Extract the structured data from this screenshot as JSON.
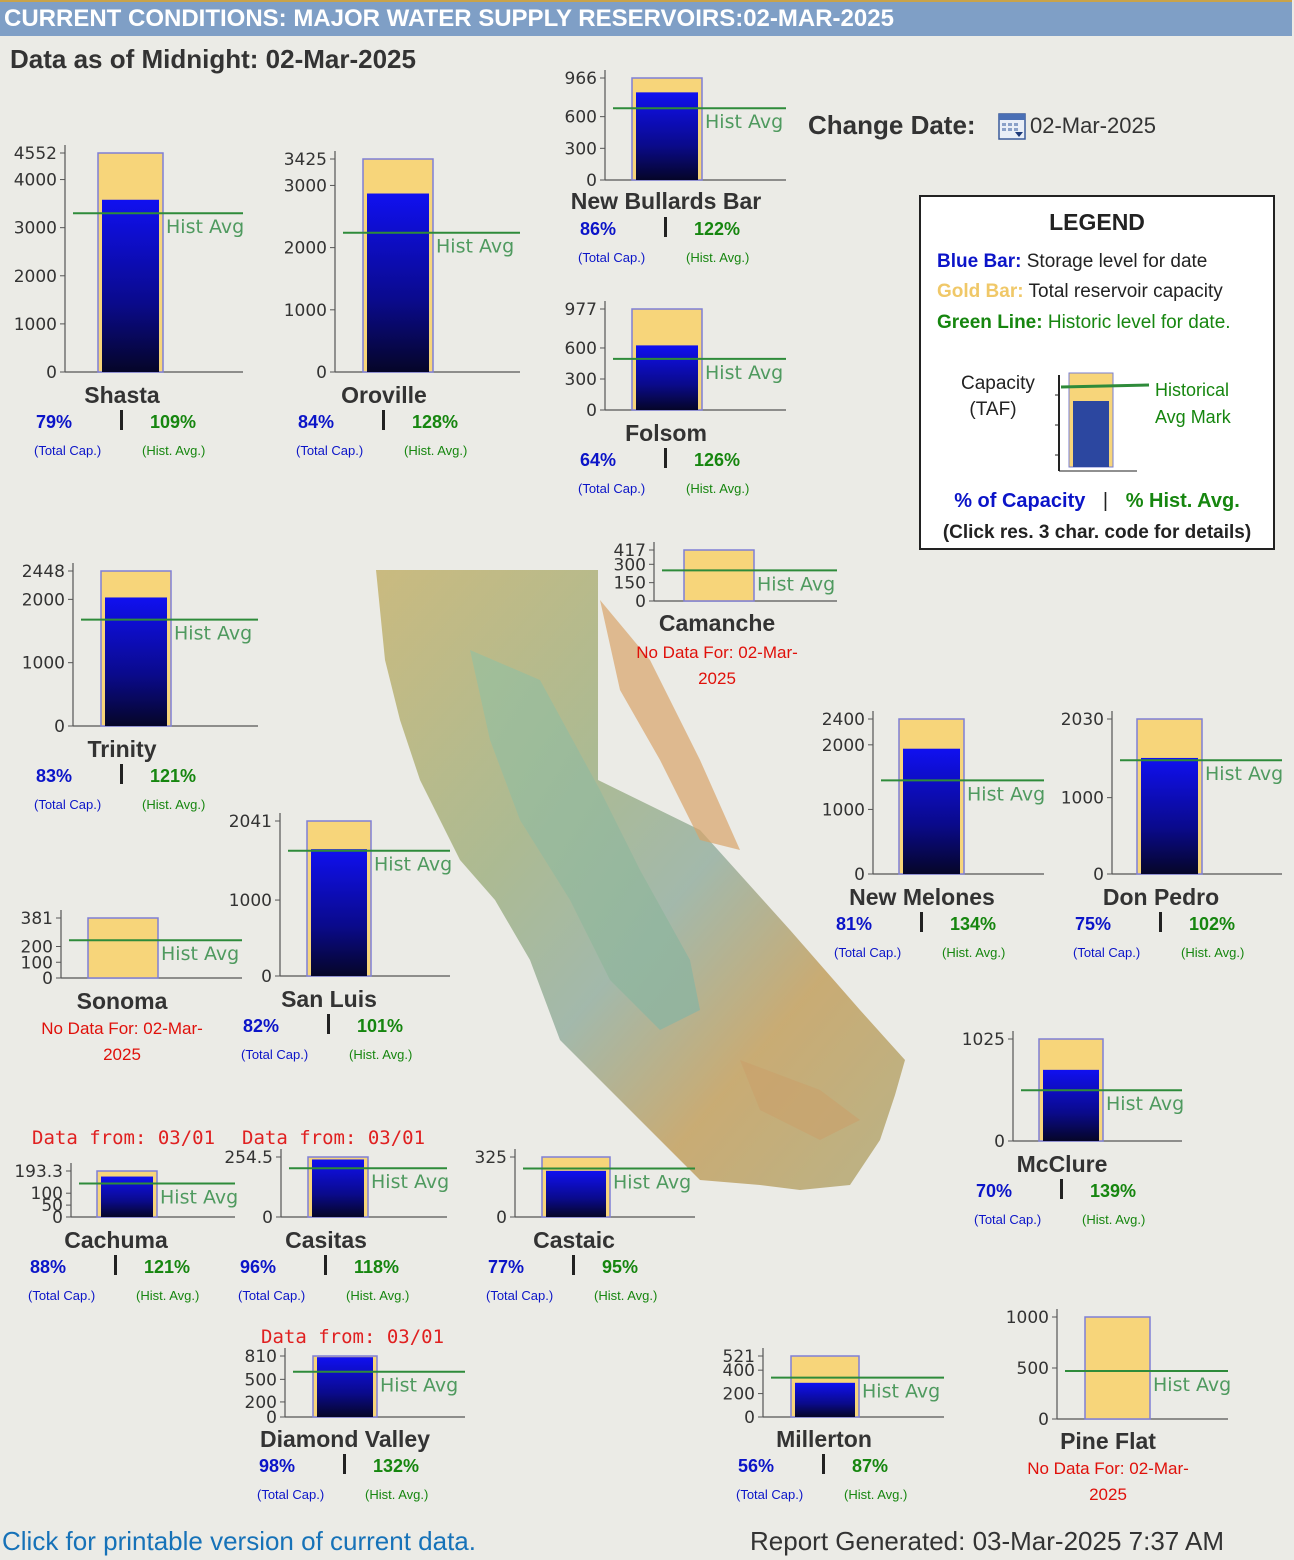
{
  "page": {
    "title": "CURRENT CONDITIONS: MAJOR WATER SUPPLY RESERVOIRS:02-MAR-2025",
    "as_of": "Data as of Midnight: 02-Mar-2025",
    "change_date_label": "Change Date:",
    "date_value": "02-Mar-2025",
    "printable_link": "Click for printable version of current data.",
    "report_generated": "Report Generated: 03-Mar-2025 7:37 AM"
  },
  "legend": {
    "title": "LEGEND",
    "blue_key": "Blue Bar:",
    "blue_text": "Storage level for date",
    "gold_key": "Gold Bar:",
    "gold_text": "Total reservoir capacity",
    "green_key": "Green Line:",
    "green_text": "Historic level for date.",
    "capacity_label_1": "Capacity",
    "capacity_label_2": "(TAF)",
    "historical_1": "Historical",
    "historical_2": "Avg Mark",
    "pct_capacity": "% of Capacity",
    "divider": "|",
    "pct_hist": "% Hist. Avg.",
    "click_note": "(Click res. 3 char. code for details)"
  },
  "colors": {
    "blue": "#0b14c8",
    "gold": "#f7d57a",
    "green": "#2e8b3a",
    "red": "#e0100a",
    "link": "#1672b8"
  },
  "hist_label": "Hist Avg",
  "total_cap_label": "(Total Cap.)",
  "hist_avg_label": "(Hist. Avg.)",
  "reservoirs": [
    {
      "name": "Shasta",
      "capacity": 4552,
      "ticks": [
        "4552",
        "4000",
        "3000",
        "2000",
        "1000",
        "0"
      ],
      "tick_vals": [
        4552,
        4000,
        3000,
        2000,
        1000,
        0
      ],
      "storage": 3580,
      "hist": 3300,
      "pct_cap": "79%",
      "pct_hist": "109%"
    },
    {
      "name": "Oroville",
      "capacity": 3425,
      "ticks": [
        "3425",
        "3000",
        "2000",
        "1000",
        "0"
      ],
      "tick_vals": [
        3425,
        3000,
        2000,
        1000,
        0
      ],
      "storage": 2870,
      "hist": 2240,
      "pct_cap": "84%",
      "pct_hist": "128%"
    },
    {
      "name": "New Bullards Bar",
      "capacity": 966,
      "ticks": [
        "966",
        "600",
        "300",
        "0"
      ],
      "tick_vals": [
        966,
        600,
        300,
        0
      ],
      "storage": 830,
      "hist": 680,
      "pct_cap": "86%",
      "pct_hist": "122%"
    },
    {
      "name": "Folsom",
      "capacity": 977,
      "ticks": [
        "977",
        "600",
        "300",
        "0"
      ],
      "tick_vals": [
        977,
        600,
        300,
        0
      ],
      "storage": 625,
      "hist": 495,
      "pct_cap": "64%",
      "pct_hist": "126%"
    },
    {
      "name": "Trinity",
      "capacity": 2448,
      "ticks": [
        "2448",
        "2000",
        "1000",
        "0"
      ],
      "tick_vals": [
        2448,
        2000,
        1000,
        0
      ],
      "storage": 2030,
      "hist": 1680,
      "pct_cap": "83%",
      "pct_hist": "121%"
    },
    {
      "name": "Camanche",
      "capacity": 417,
      "ticks": [
        "417",
        "300",
        "150",
        "0"
      ],
      "tick_vals": [
        417,
        300,
        150,
        0
      ],
      "storage": null,
      "hist": 250,
      "nodata_1": "No Data For: 02-Mar-",
      "nodata_2": "2025"
    },
    {
      "name": "New Melones",
      "capacity": 2400,
      "ticks": [
        "2400",
        "2000",
        "1000",
        "0"
      ],
      "tick_vals": [
        2400,
        2000,
        1000,
        0
      ],
      "storage": 1940,
      "hist": 1450,
      "pct_cap": "81%",
      "pct_hist": "134%"
    },
    {
      "name": "Don Pedro",
      "capacity": 2030,
      "ticks": [
        "2030",
        "1000",
        "0"
      ],
      "tick_vals": [
        2030,
        1000,
        0
      ],
      "storage": 1520,
      "hist": 1490,
      "pct_cap": "75%",
      "pct_hist": "102%"
    },
    {
      "name": "San Luis",
      "capacity": 2041,
      "ticks": [
        "2041",
        "1000",
        "0"
      ],
      "tick_vals": [
        2041,
        1000,
        0
      ],
      "storage": 1670,
      "hist": 1650,
      "pct_cap": "82%",
      "pct_hist": "101%"
    },
    {
      "name": "Sonoma",
      "capacity": 381,
      "ticks": [
        "381",
        "200",
        "100",
        "0"
      ],
      "tick_vals": [
        381,
        200,
        100,
        0
      ],
      "storage": null,
      "hist": 240,
      "nodata_1": "No Data For: 02-Mar-",
      "nodata_2": "2025"
    },
    {
      "name": "McClure",
      "capacity": 1025,
      "ticks": [
        "1025",
        "0"
      ],
      "tick_vals": [
        1025,
        0
      ],
      "storage": 715,
      "hist": 510,
      "pct_cap": "70%",
      "pct_hist": "139%"
    },
    {
      "name": "Cachuma",
      "capacity": 193.3,
      "ticks": [
        "193.3",
        "100",
        "50",
        "0"
      ],
      "tick_vals": [
        193.3,
        100,
        50,
        0
      ],
      "storage": 170,
      "hist": 141,
      "pct_cap": "88%",
      "pct_hist": "121%",
      "data_from": "Data from: 03/01"
    },
    {
      "name": "Casitas",
      "capacity": 254.5,
      "ticks": [
        "254.5",
        "0"
      ],
      "tick_vals": [
        254.5,
        0
      ],
      "storage": 244,
      "hist": 207,
      "pct_cap": "96%",
      "pct_hist": "118%",
      "data_from": "Data from: 03/01"
    },
    {
      "name": "Castaic",
      "capacity": 325,
      "ticks": [
        "325",
        "0"
      ],
      "tick_vals": [
        325,
        0
      ],
      "storage": 250,
      "hist": 263,
      "pct_cap": "77%",
      "pct_hist": "95%"
    },
    {
      "name": "Diamond Valley",
      "capacity": 810,
      "ticks": [
        "810",
        "500",
        "200",
        "0"
      ],
      "tick_vals": [
        810,
        500,
        200,
        0
      ],
      "storage": 794,
      "hist": 601,
      "pct_cap": "98%",
      "pct_hist": "132%",
      "data_from": "Data from: 03/01"
    },
    {
      "name": "Millerton",
      "capacity": 521,
      "ticks": [
        "521",
        "400",
        "200",
        "0"
      ],
      "tick_vals": [
        521,
        400,
        200,
        0
      ],
      "storage": 292,
      "hist": 336,
      "pct_cap": "56%",
      "pct_hist": "87%"
    },
    {
      "name": "Pine Flat",
      "capacity": 1000,
      "ticks": [
        "1000",
        "500",
        "0"
      ],
      "tick_vals": [
        1000,
        500,
        0
      ],
      "storage": null,
      "hist": 470,
      "nodata_1": "No Data For: 02-Mar-",
      "nodata_2": "2025"
    }
  ]
}
